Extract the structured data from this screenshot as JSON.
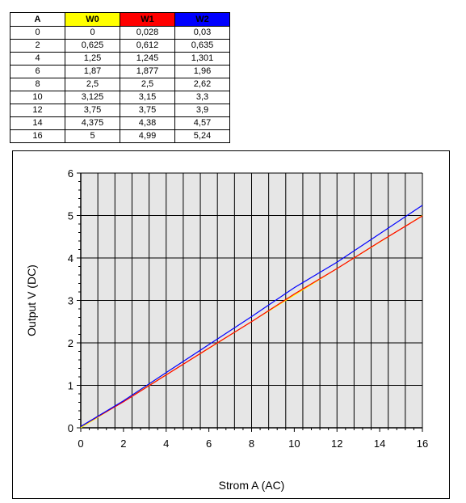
{
  "table": {
    "headers": [
      {
        "label": "A",
        "color": "#ffffff"
      },
      {
        "label": "W0",
        "color": "#ffff00"
      },
      {
        "label": "W1",
        "color": "#ff0000"
      },
      {
        "label": "W2",
        "color": "#0000ff"
      }
    ],
    "rows": [
      [
        "0",
        "0",
        "0,028",
        "0,03"
      ],
      [
        "2",
        "0,625",
        "0,612",
        "0,635"
      ],
      [
        "4",
        "1,25",
        "1,245",
        "1,301"
      ],
      [
        "6",
        "1,87",
        "1,877",
        "1,96"
      ],
      [
        "8",
        "2,5",
        "2,5",
        "2,62"
      ],
      [
        "10",
        "3,125",
        "3,15",
        "3,3"
      ],
      [
        "12",
        "3,75",
        "3,75",
        "3,9"
      ],
      [
        "14",
        "4,375",
        "4,38",
        "4,57"
      ],
      [
        "16",
        "5",
        "4,99",
        "5,24"
      ]
    ]
  },
  "chart_data": {
    "type": "line",
    "xlabel": "Strom  A (AC)",
    "ylabel": "Output  V (DC)",
    "xlim": [
      0,
      16
    ],
    "ylim": [
      0,
      6
    ],
    "x_ticks": [
      "0",
      "2",
      "4",
      "6",
      "8",
      "10",
      "12",
      "14",
      "16"
    ],
    "y_ticks": [
      "0",
      "1",
      "2",
      "3",
      "4",
      "5",
      "6"
    ],
    "x_grid_step": 0.8,
    "y_grid_step": 1,
    "grid": true,
    "plot_background": "#e6e6e6",
    "x": [
      0,
      2,
      4,
      6,
      8,
      10,
      12,
      14,
      16
    ],
    "series": [
      {
        "name": "W0",
        "color": "#ffff00",
        "values": [
          0,
          0.625,
          1.25,
          1.87,
          2.5,
          3.125,
          3.75,
          4.375,
          5
        ]
      },
      {
        "name": "W1",
        "color": "#ff0000",
        "values": [
          0.028,
          0.612,
          1.245,
          1.877,
          2.5,
          3.15,
          3.75,
          4.38,
          4.99
        ]
      },
      {
        "name": "W2",
        "color": "#0000ff",
        "values": [
          0.03,
          0.635,
          1.301,
          1.96,
          2.62,
          3.3,
          3.9,
          4.57,
          5.24
        ]
      }
    ]
  }
}
